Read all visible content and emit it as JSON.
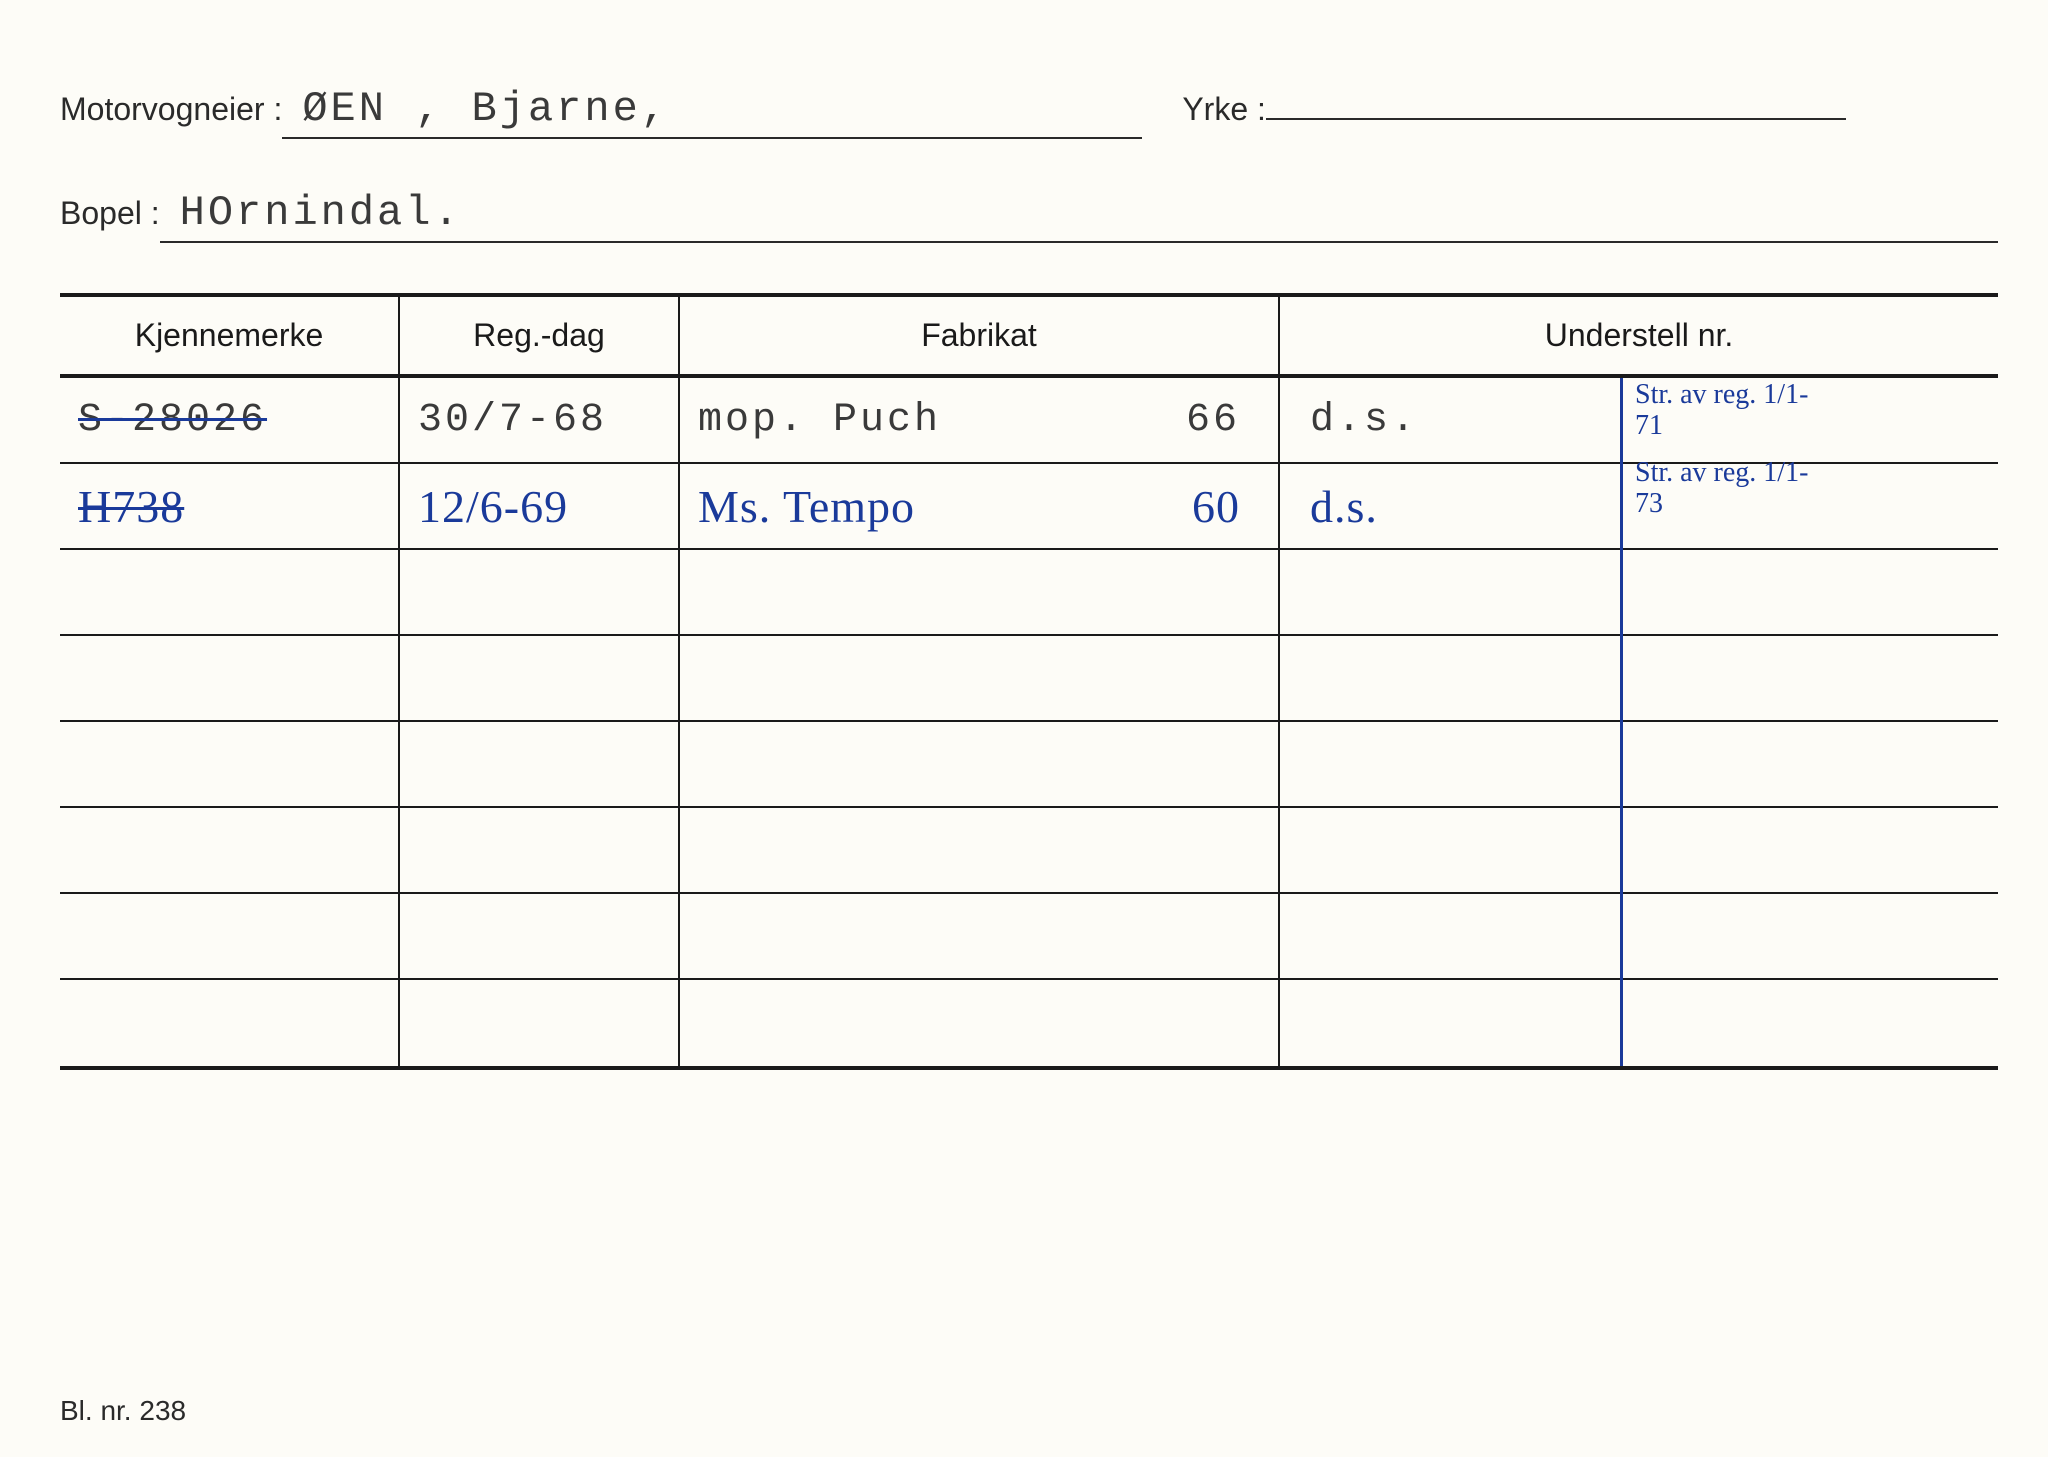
{
  "labels": {
    "motorvogneier": "Motorvogneier :",
    "yrke": "Yrke :",
    "bopel": "Bopel :",
    "form_number": "Bl. nr. 238"
  },
  "fields": {
    "motorvogneier": "ØEN , Bjarne,",
    "yrke": "",
    "bopel": "HOrnindal."
  },
  "table": {
    "headers": {
      "kjennemerke": "Kjennemerke",
      "regdag": "Reg.-dag",
      "fabrikat": "Fabrikat",
      "understell": "Understell nr."
    },
    "rows": [
      {
        "kjennemerke": "S-28026",
        "kjennemerke_struck": true,
        "kjennemerke_style": "typed",
        "regdag": "30/7-68",
        "regdag_style": "typed",
        "fabrikat": "mop.  Puch",
        "fabrikat_year": "66",
        "fabrikat_style": "typed",
        "understell": "d.s.",
        "understell_style": "typed"
      },
      {
        "kjennemerke": "H738",
        "kjennemerke_struck": true,
        "kjennemerke_style": "handwritten",
        "regdag": "12/6-69",
        "regdag_style": "handwritten",
        "fabrikat": "Ms. Tempo",
        "fabrikat_year": "60",
        "fabrikat_style": "handwritten",
        "understell": "d.s.",
        "understell_style": "handwritten"
      },
      {},
      {},
      {},
      {},
      {},
      {}
    ],
    "margin_notes": [
      "Str. av reg. 1/1-71",
      "Str. av reg. 1/1-73"
    ]
  },
  "colors": {
    "card_bg": "#fdfcf7",
    "page_bg": "#e8e8e8",
    "ink_black": "#1a1a1a",
    "typed_text": "#3a3a3a",
    "pen_blue": "#1a3a9a"
  }
}
